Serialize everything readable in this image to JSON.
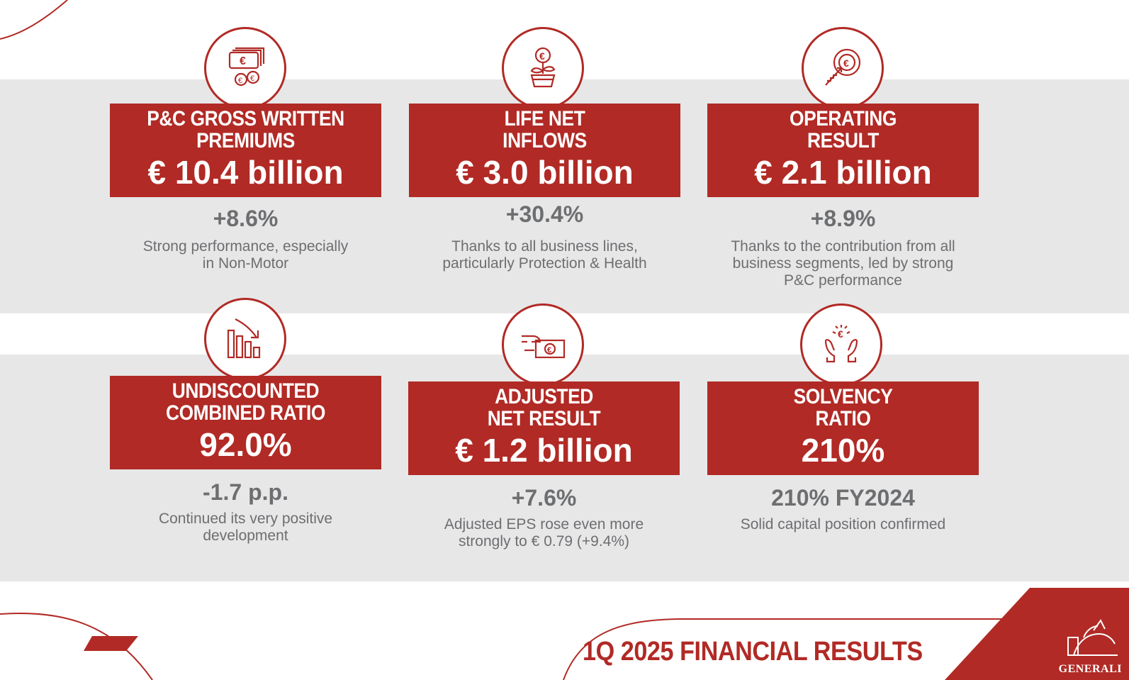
{
  "cards": [
    {
      "icon": "banknote-coins-icon",
      "title_line1": "P&C GROSS WRITTEN",
      "title_line2": "PREMIUMS",
      "value": "€ 10.4 billion",
      "change": "+8.6%",
      "desc_line1": "Strong performance, especially",
      "desc_line2": "in Non-Motor",
      "desc_line3": ""
    },
    {
      "icon": "euro-plant-icon",
      "title_line1": "LIFE NET",
      "title_line2": "INFLOWS",
      "value": "€ 3.0 billion",
      "change": "+30.4%",
      "desc_line1": "Thanks to all business lines,",
      "desc_line2": "particularly Protection & Health",
      "desc_line3": ""
    },
    {
      "icon": "euro-target-icon",
      "title_line1": "OPERATING",
      "title_line2": "RESULT",
      "value": "€ 2.1 billion",
      "change": "+8.9%",
      "desc_line1": "Thanks to the contribution from all",
      "desc_line2": "business segments, led by strong",
      "desc_line3": "P&C performance"
    },
    {
      "icon": "declining-bars-icon",
      "title_line1": "UNDISCOUNTED",
      "title_line2": "COMBINED RATIO",
      "value": "92.0%",
      "change": "-1.7 p.p.",
      "desc_line1": "Continued its very positive",
      "desc_line2": "development",
      "desc_line3": ""
    },
    {
      "icon": "hand-banknote-icon",
      "title_line1": "ADJUSTED",
      "title_line2": "NET RESULT",
      "value": "€ 1.2 billion",
      "change": "+7.6%",
      "desc_line1": "Adjusted EPS rose even more",
      "desc_line2": "strongly to € 0.79 (+9.4%)",
      "desc_line3": ""
    },
    {
      "icon": "hands-euro-icon",
      "title_line1": "SOLVENCY",
      "title_line2": "RATIO",
      "value": "210%",
      "change": "210% FY2024",
      "desc_line1": "Solid capital position confirmed",
      "desc_line2": "",
      "desc_line3": ""
    }
  ],
  "footer": {
    "title": "1Q 2025 FINANCIAL RESULTS",
    "logo_text": "GENERALI"
  },
  "colors": {
    "brand_red": "#b12a25",
    "band_gray": "#e7e7e8",
    "text_gray": "#6d6e70"
  }
}
